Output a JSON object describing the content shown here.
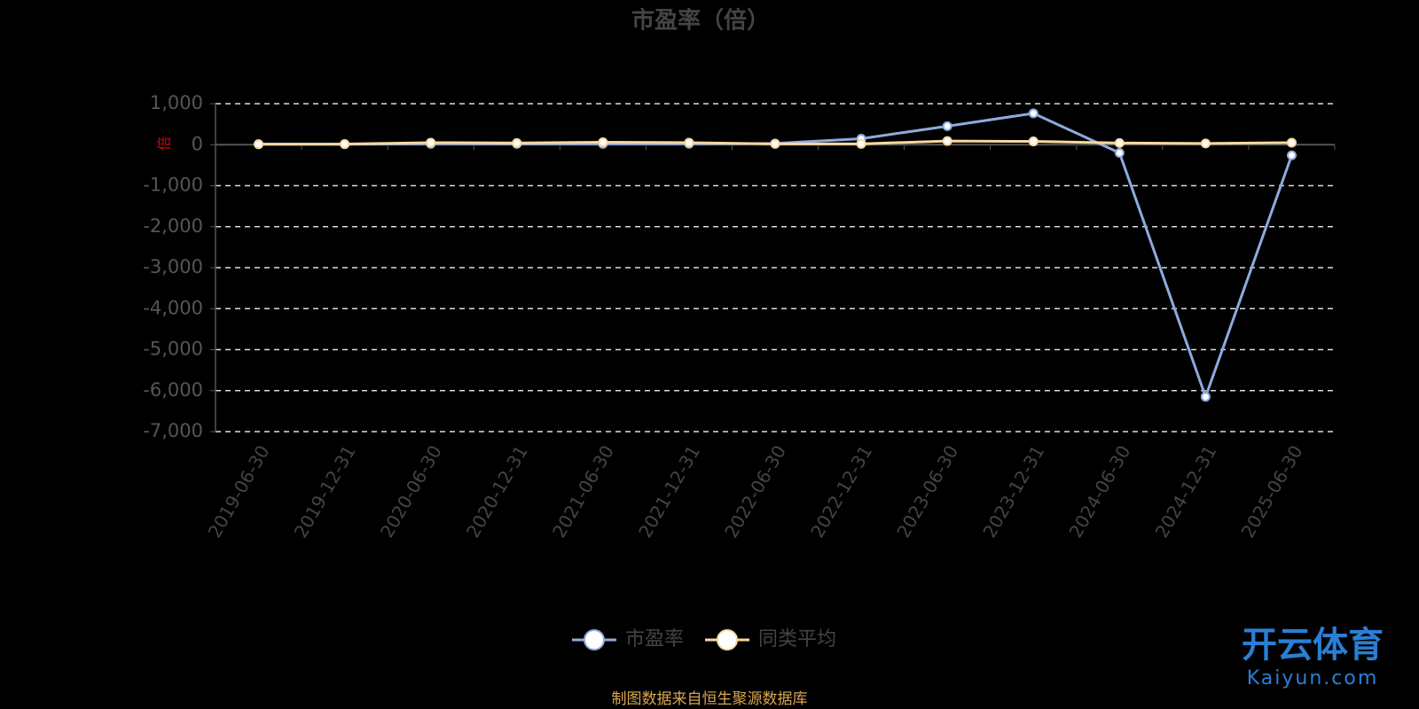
{
  "chart_data": {
    "type": "line",
    "title": "市盈率（倍）",
    "y_label": "倍",
    "categories": [
      "2019-06-30",
      "2019-12-31",
      "2020-06-30",
      "2020-12-31",
      "2021-06-30",
      "2021-12-31",
      "2022-06-30",
      "2022-12-31",
      "2023-06-30",
      "2023-12-31",
      "2024-06-30",
      "2024-12-31",
      "2025-06-30"
    ],
    "series": [
      {
        "name": "市盈率",
        "color": "#8faadc",
        "values": [
          14.18,
          11.93,
          20.49,
          20.14,
          19.96,
          22.19,
          30.22,
          146.26,
          452,
          764,
          -200,
          -6150,
          -260
        ]
      },
      {
        "name": "同类平均",
        "color": "#f7d9a0",
        "values": [
          10,
          15,
          50,
          40,
          60,
          50,
          20,
          20,
          90,
          80,
          40,
          30,
          50
        ]
      }
    ],
    "ylim": [
      -7000,
      1000
    ],
    "yticks": [
      {
        "value": -7000,
        "label": "-7,000"
      },
      {
        "value": -6000,
        "label": "-6,000"
      },
      {
        "value": -5000,
        "label": "-5,000"
      },
      {
        "value": -4000,
        "label": "-4,000"
      },
      {
        "value": -3000,
        "label": "-3,000"
      },
      {
        "value": -2000,
        "label": "-2,000"
      },
      {
        "value": -1000,
        "label": "-1,000"
      },
      0,
      {
        "value": 1000,
        "label": "1,000"
      }
    ],
    "grid": true,
    "legend": "bottom",
    "source": "制图数据来自恒生聚源数据库",
    "watermark": {
      "brand": "开云体育",
      "url": "Kaiyun.com"
    }
  }
}
